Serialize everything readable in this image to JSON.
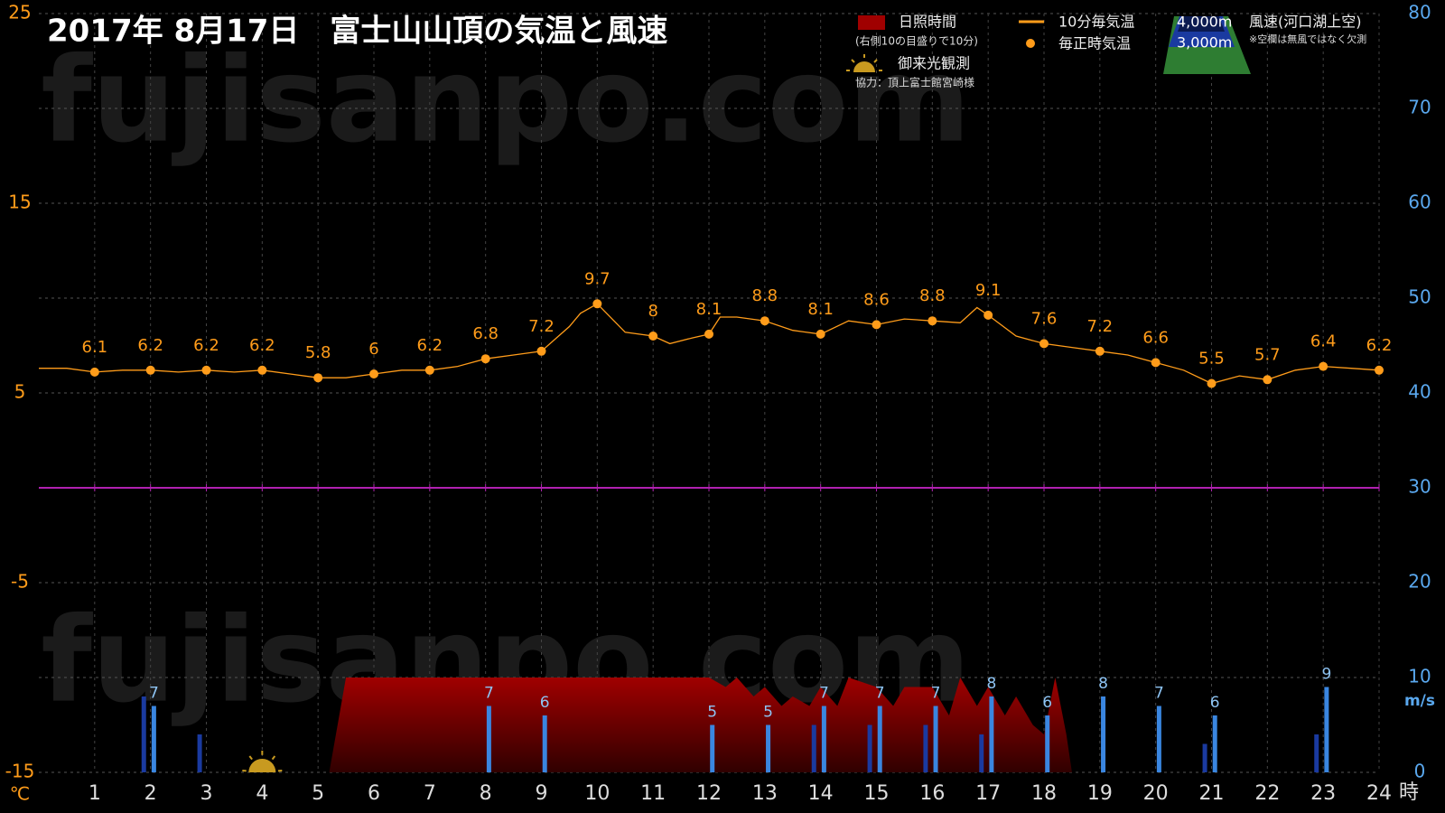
{
  "chart_data": {
    "type": "line",
    "title": "2017年  8月17日　富士山山頂の気温と風速",
    "watermark": "fujisanpo.com",
    "x_unit": "時",
    "y_unit": "℃",
    "y2_unit": "m/s",
    "xlim": [
      0,
      24
    ],
    "xticks": [
      1,
      2,
      3,
      4,
      5,
      6,
      7,
      8,
      9,
      10,
      11,
      12,
      13,
      14,
      15,
      16,
      17,
      18,
      19,
      20,
      21,
      22,
      23,
      24
    ],
    "ylim": [
      -15,
      25
    ],
    "yticks": [
      -15,
      -5,
      5,
      15,
      25
    ],
    "y2lim": [
      0,
      80
    ],
    "y2ticks": [
      0,
      10,
      20,
      30,
      40,
      50,
      60,
      70,
      80
    ],
    "grid": true,
    "series": [
      {
        "name": "日照時間",
        "note": "(右側10の目盛りで10分)",
        "type": "area",
        "axis": "y2",
        "color": "#a00000",
        "x": [
          5.2,
          5.5,
          6,
          7,
          8,
          9,
          10,
          11,
          12,
          12.3,
          12.5,
          12.8,
          13,
          13.3,
          13.5,
          13.8,
          14,
          14.3,
          14.5,
          15,
          15.3,
          15.5,
          16,
          16.3,
          16.5,
          16.8,
          17,
          17.3,
          17.5,
          17.8,
          18,
          18.2,
          18.4,
          18.5
        ],
        "values": [
          0,
          10,
          10,
          10,
          10,
          10,
          10,
          10,
          10,
          9,
          10,
          8,
          9,
          7,
          8,
          7,
          9,
          7,
          10,
          9,
          7,
          9,
          9,
          6,
          10,
          7,
          9,
          6,
          8,
          5,
          4,
          10,
          4,
          0
        ]
      },
      {
        "name": "10分毎気温",
        "type": "line",
        "color": "#ff9c1a",
        "x": [
          0,
          0.5,
          1,
          1.5,
          2,
          2.5,
          3,
          3.5,
          4,
          4.5,
          5,
          5.5,
          6,
          6.5,
          7,
          7.5,
          8,
          8.5,
          9,
          9.5,
          9.7,
          10,
          10.5,
          11,
          11.3,
          11.7,
          12,
          12.2,
          12.5,
          13,
          13.5,
          14,
          14.5,
          15,
          15.5,
          16,
          16.5,
          16.8,
          17,
          17.5,
          18,
          18.5,
          19,
          19.5,
          20,
          20.5,
          21,
          21.5,
          22,
          22.5,
          23,
          23.5,
          24
        ],
        "values": [
          6.3,
          6.3,
          6.1,
          6.2,
          6.2,
          6.1,
          6.2,
          6.1,
          6.2,
          6.0,
          5.8,
          5.8,
          6.0,
          6.2,
          6.2,
          6.4,
          6.8,
          7.0,
          7.2,
          8.5,
          9.2,
          9.7,
          8.2,
          8.0,
          7.6,
          7.9,
          8.1,
          9.0,
          9.0,
          8.8,
          8.3,
          8.1,
          8.8,
          8.6,
          8.9,
          8.8,
          8.7,
          9.5,
          9.1,
          8.0,
          7.6,
          7.4,
          7.2,
          7.0,
          6.6,
          6.2,
          5.5,
          5.9,
          5.7,
          6.2,
          6.4,
          6.3,
          6.2
        ]
      },
      {
        "name": "毎正時気温",
        "type": "scatter",
        "color": "#ff9c1a",
        "x": [
          1,
          2,
          3,
          4,
          5,
          6,
          7,
          8,
          9,
          10,
          11,
          12,
          13,
          14,
          15,
          16,
          17,
          18,
          19,
          20,
          21,
          22,
          23,
          24
        ],
        "values": [
          6.1,
          6.2,
          6.2,
          6.2,
          5.8,
          6,
          6.2,
          6.8,
          7.2,
          9.7,
          8,
          8.1,
          8.8,
          8.1,
          8.6,
          8.8,
          9.1,
          7.6,
          7.2,
          6.6,
          5.5,
          5.7,
          6.4,
          6.2
        ]
      }
    ],
    "wind": {
      "title": "風速(河口湖上空)",
      "note": "※空欄は無風ではなく欠測",
      "x": [
        1,
        2,
        3,
        4,
        5,
        6,
        7,
        8,
        9,
        10,
        11,
        12,
        13,
        14,
        15,
        16,
        17,
        18,
        19,
        20,
        21,
        22,
        23,
        24
      ],
      "series": [
        {
          "name": "4,000m",
          "type": "bar",
          "axis": "y2",
          "color": "#1a3aa0",
          "values": [
            null,
            8,
            4,
            null,
            null,
            null,
            null,
            null,
            null,
            null,
            null,
            null,
            null,
            5,
            5,
            5,
            4,
            null,
            null,
            null,
            3,
            null,
            4,
            null
          ]
        },
        {
          "name": "3,000m",
          "type": "bar",
          "axis": "y2",
          "color": "#3a86e0",
          "labels": true,
          "values": [
            null,
            7,
            null,
            null,
            null,
            null,
            null,
            7,
            6,
            null,
            null,
            5,
            5,
            7,
            7,
            7,
            8,
            6,
            8,
            7,
            6,
            null,
            9,
            null
          ]
        }
      ]
    },
    "sunrise": {
      "label": "御来光観測",
      "x": 4
    },
    "credit": "協力：頂上富士館宮崎様"
  }
}
